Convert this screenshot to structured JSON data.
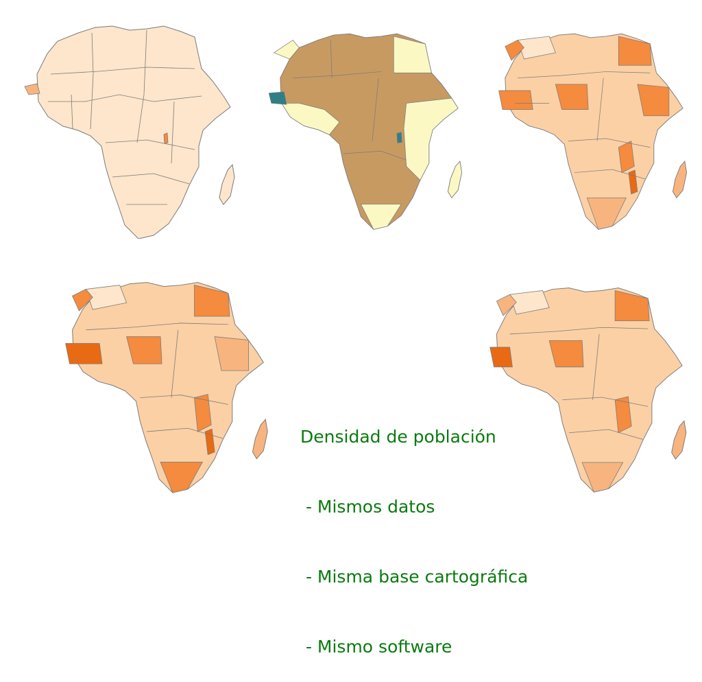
{
  "caption": {
    "title": "Densidad de población",
    "items": [
      " - Mismos datos",
      " - Misma base cartográfica",
      " - Mismo software"
    ]
  },
  "colors": {
    "border": "#7a7a7a",
    "light": "#fde6cb",
    "pale_yellow": "#fbf8c3",
    "brown": "#c79a62",
    "teal": "#2f7f86",
    "orange_1": "#fbd0a5",
    "orange_2": "#f8b47f",
    "orange_3": "#f48b3f",
    "orange_4": "#e86a14",
    "caption": "#0b7a10"
  },
  "maps": [
    {
      "scheme": "mostly-uniform"
    },
    {
      "scheme": "three-class"
    },
    {
      "scheme": "graduated"
    },
    {
      "scheme": "graduated"
    },
    {
      "scheme": "graduated"
    }
  ]
}
